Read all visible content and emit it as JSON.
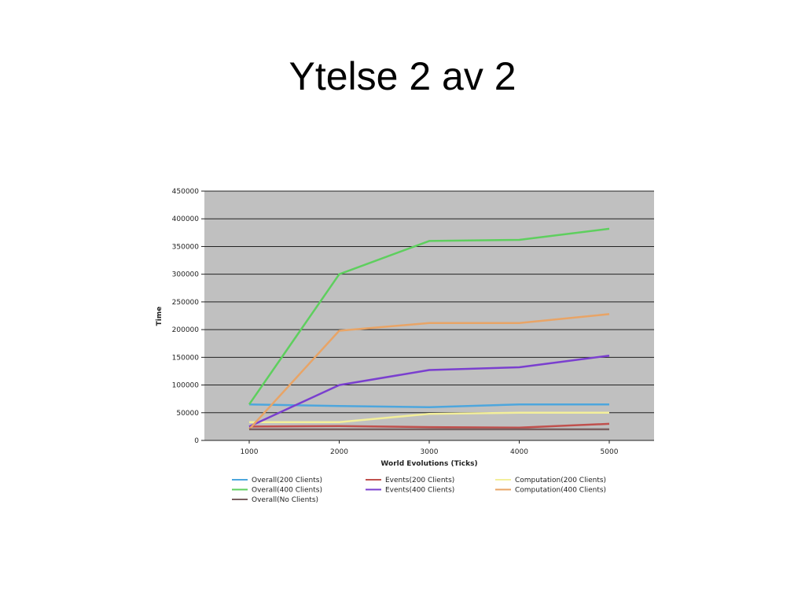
{
  "slide": {
    "title": "Ytelse 2 av 2"
  },
  "chart_data": {
    "type": "line",
    "title": "",
    "xlabel": "World Evolutions (Ticks)",
    "ylabel": "Time",
    "x": [
      1000,
      2000,
      3000,
      4000,
      5000
    ],
    "ylim": [
      0,
      450000
    ],
    "yticks": [
      0,
      50000,
      100000,
      150000,
      200000,
      250000,
      300000,
      350000,
      400000,
      450000
    ],
    "grid": true,
    "plot_background": "#c0c0c0",
    "legend_position": "bottom",
    "series": [
      {
        "name": "Overall(200 Clients)",
        "color": "#4da6dd",
        "values": [
          65000,
          62000,
          60000,
          65000,
          65000
        ]
      },
      {
        "name": "Events(200 Clients)",
        "color": "#c0504d",
        "values": [
          25000,
          26000,
          24000,
          23000,
          30000
        ]
      },
      {
        "name": "Computation(200 Clients)",
        "color": "#f3ef9a",
        "values": [
          33000,
          33000,
          48000,
          50000,
          50000
        ]
      },
      {
        "name": "Overall(400 Clients)",
        "color": "#5ecf5e",
        "values": [
          65000,
          300000,
          360000,
          362000,
          382000
        ]
      },
      {
        "name": "Events(400 Clients)",
        "color": "#7a3fcf",
        "values": [
          25000,
          100000,
          127000,
          132000,
          153000
        ]
      },
      {
        "name": "Computation(400 Clients)",
        "color": "#e8a466",
        "values": [
          20000,
          198000,
          212000,
          212000,
          228000
        ]
      },
      {
        "name": "Overall(No Clients)",
        "color": "#7a6060",
        "values": [
          20000,
          20000,
          20000,
          20000,
          20000
        ]
      }
    ]
  }
}
